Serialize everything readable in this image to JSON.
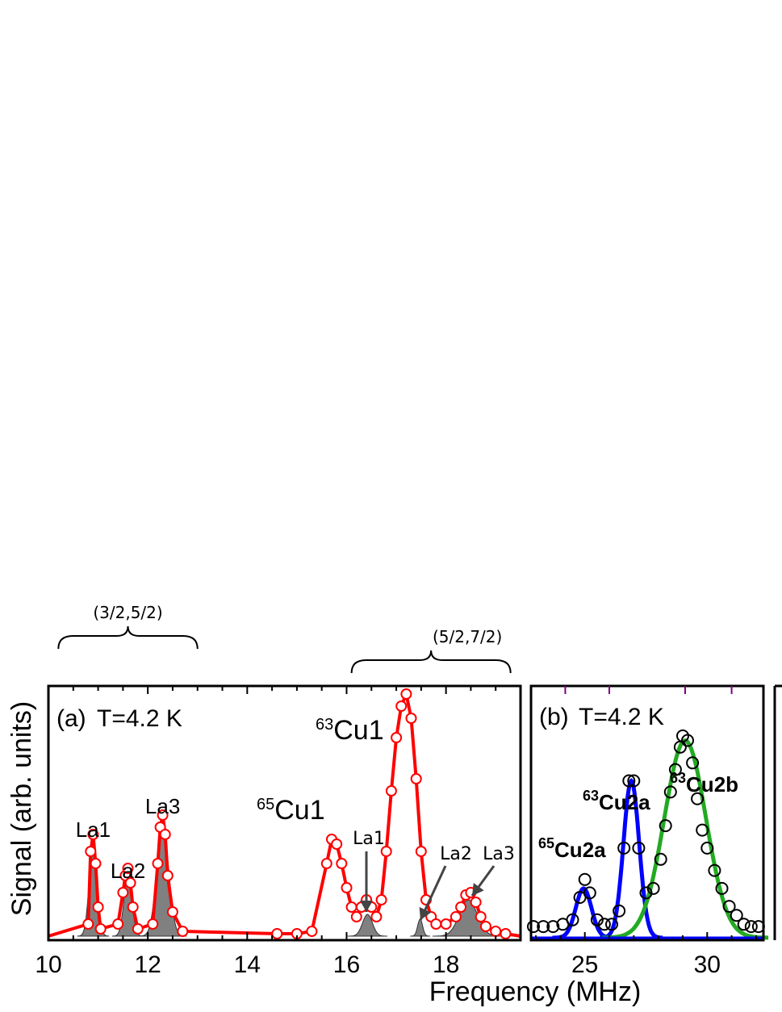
{
  "figure": {
    "ylabel": "Signal (arb. units)",
    "xlabel": "Frequency (MHz)"
  },
  "chart_data": [
    {
      "type": "scatter",
      "panel_label": "(a)",
      "temperature": "T=4.2 K",
      "xlim": [
        10,
        19.5
      ],
      "xticks": [
        "10",
        "12",
        "14",
        "16",
        "18"
      ],
      "colors": {
        "data": "#ff0000",
        "fill": "#808080"
      },
      "brackets": [
        {
          "label": "(3/2,5/2)",
          "x_from": 10.2,
          "x_to": 13.0
        },
        {
          "label": "(5/2,7/2)",
          "x_from": 16.1,
          "x_to": 19.3
        }
      ],
      "peak_labels": [
        {
          "text": "La1",
          "x": 10.9
        },
        {
          "text": "La2",
          "x": 11.6
        },
        {
          "text": "La3",
          "x": 12.3
        }
      ],
      "arrow_labels": [
        {
          "text": "La1",
          "x": 16.4
        },
        {
          "text": "La2",
          "x": 17.5
        },
        {
          "text": "La3",
          "x": 18.4
        }
      ],
      "isotope_labels": [
        {
          "mass": "65",
          "text": "Cu1",
          "color": "#ff0000",
          "x": 15.85
        },
        {
          "mass": "63",
          "text": "Cu1",
          "color": "#ff0000",
          "x": 17.2
        }
      ],
      "series": [
        {
          "name": "data",
          "x": [
            10.8,
            10.85,
            10.9,
            10.95,
            11.0,
            11.05,
            11.4,
            11.5,
            11.55,
            11.6,
            11.65,
            11.7,
            11.8,
            12.1,
            12.2,
            12.25,
            12.3,
            12.35,
            12.4,
            12.5,
            12.7,
            14.6,
            15.0,
            15.3,
            15.6,
            15.7,
            15.8,
            15.9,
            16.0,
            16.1,
            16.2,
            16.3,
            16.4,
            16.5,
            16.6,
            16.7,
            16.8,
            16.9,
            17.0,
            17.1,
            17.2,
            17.3,
            17.4,
            17.5,
            17.6,
            17.7,
            17.8,
            18.0,
            18.2,
            18.3,
            18.4,
            18.5,
            18.6,
            18.7,
            18.8,
            19.0,
            19.2
          ],
          "y": [
            0.05,
            0.35,
            0.42,
            0.3,
            0.12,
            0.03,
            0.05,
            0.18,
            0.25,
            0.28,
            0.22,
            0.12,
            0.03,
            0.05,
            0.3,
            0.45,
            0.5,
            0.42,
            0.25,
            0.1,
            0.02,
            0.01,
            0.01,
            0.02,
            0.3,
            0.4,
            0.38,
            0.3,
            0.2,
            0.12,
            0.08,
            0.12,
            0.15,
            0.12,
            0.08,
            0.15,
            0.35,
            0.6,
            0.82,
            0.95,
            1.0,
            0.9,
            0.65,
            0.35,
            0.15,
            0.08,
            0.05,
            0.05,
            0.08,
            0.12,
            0.17,
            0.18,
            0.14,
            0.08,
            0.04,
            0.02,
            0.01
          ]
        }
      ],
      "fill_peaks": [
        {
          "center": 10.9,
          "height": 0.38,
          "width": 0.08
        },
        {
          "center": 11.6,
          "height": 0.25,
          "width": 0.08
        },
        {
          "center": 12.3,
          "height": 0.46,
          "width": 0.12
        },
        {
          "center": 16.42,
          "height": 0.09,
          "width": 0.1
        },
        {
          "center": 17.48,
          "height": 0.07,
          "width": 0.05
        },
        {
          "center": 18.45,
          "height": 0.15,
          "width": 0.18
        }
      ]
    },
    {
      "type": "scatter",
      "panel_label": "(b)",
      "temperature": "T=4.2 K",
      "xlim": [
        22.8,
        32.3
      ],
      "xticks": [
        "25",
        "30"
      ],
      "colors": {
        "data": "#000000",
        "Cu2a": "#0000ff",
        "Cu2b": "#22aa22"
      },
      "isotope_labels": [
        {
          "mass": "65",
          "text": "Cu2a",
          "color": "#0000ff",
          "x": 24.0
        },
        {
          "mass": "63",
          "text": "Cu2a",
          "color": "#0000ff",
          "x": 25.6
        },
        {
          "mass": "63",
          "text": "Cu2b",
          "color": "#22aa22",
          "x": 29.1
        }
      ],
      "series": [
        {
          "name": "data",
          "x": [
            22.9,
            23.3,
            23.7,
            24.1,
            24.5,
            24.8,
            25.0,
            25.2,
            25.5,
            25.8,
            26.1,
            26.4,
            26.6,
            26.8,
            27.0,
            27.2,
            27.5,
            27.8,
            28.1,
            28.3,
            28.5,
            28.7,
            28.9,
            29.0,
            29.2,
            29.4,
            29.6,
            29.8,
            30.0,
            30.3,
            30.6,
            30.9,
            31.2,
            31.5,
            31.8,
            32.1
          ],
          "y": [
            0.05,
            0.05,
            0.05,
            0.06,
            0.08,
            0.18,
            0.26,
            0.2,
            0.08,
            0.06,
            0.06,
            0.12,
            0.4,
            0.7,
            0.7,
            0.4,
            0.2,
            0.22,
            0.35,
            0.5,
            0.65,
            0.75,
            0.85,
            0.9,
            0.88,
            0.78,
            0.62,
            0.48,
            0.4,
            0.3,
            0.22,
            0.14,
            0.1,
            0.06,
            0.05,
            0.05
          ]
        }
      ],
      "fits": [
        {
          "name": "65Cu2a",
          "center": 24.95,
          "height": 0.22,
          "width": 0.32,
          "color": "#0000ff"
        },
        {
          "name": "63Cu2a",
          "center": 26.9,
          "height": 0.7,
          "width": 0.32,
          "color": "#0000ff"
        },
        {
          "name": "63Cu2b",
          "center": 29.1,
          "height": 0.88,
          "width": 0.85,
          "color": "#22aa22"
        }
      ]
    }
  ]
}
